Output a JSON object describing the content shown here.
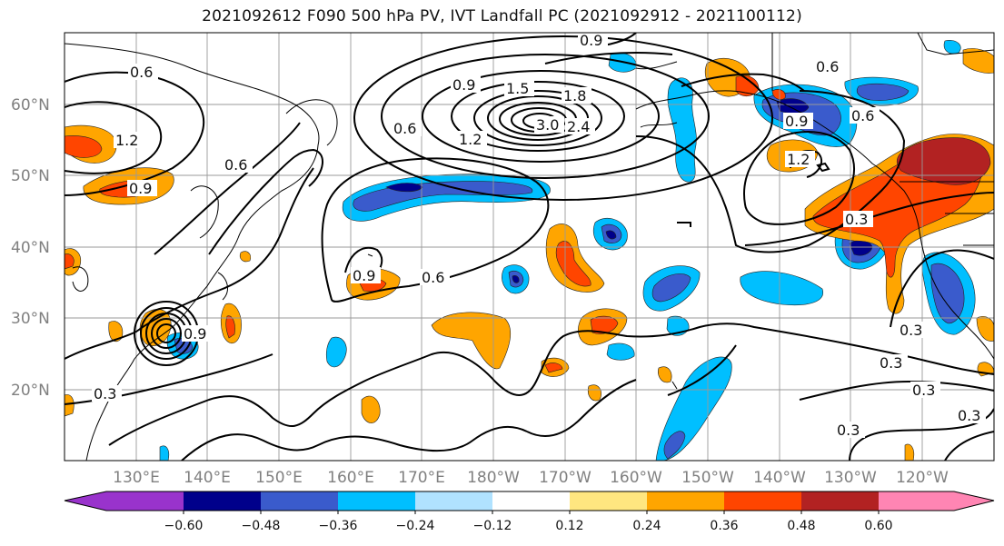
{
  "title": "2021092612 F090 500 hPa PV, IVT Landfall PC (2021092912 - 2021100112)",
  "lat_labels": [
    "60°N",
    "50°N",
    "40°N",
    "30°N",
    "20°N"
  ],
  "lon_labels": [
    "130°E",
    "140°E",
    "150°E",
    "160°E",
    "170°E",
    "180°W",
    "170°W",
    "160°W",
    "150°W",
    "140°W",
    "130°W",
    "120°W"
  ],
  "contour_labels": [
    "0.6",
    "1.2",
    "0.9",
    "0.6",
    "0.9",
    "1.5",
    "1.8",
    "3.0",
    "2.4",
    "1.2",
    "0.6",
    "0.9",
    "0.6",
    "0.9",
    "0.6",
    "0.9",
    "1.2",
    "0.3",
    "0.6",
    "0.3",
    "0.3",
    "0.3",
    "0.3",
    "0.3",
    "0.3",
    "0.9"
  ],
  "colorbar": {
    "ticks": [
      "−0.60",
      "−0.48",
      "−0.36",
      "−0.24",
      "−0.12",
      "0.12",
      "0.24",
      "0.36",
      "0.48",
      "0.60"
    ],
    "colors": [
      "#9933cc",
      "#00008b",
      "#3a5bcc",
      "#00bfff",
      "#b0e2ff",
      "#ffffff",
      "#ffe680",
      "#ffa500",
      "#ff4500",
      "#b22222",
      "#ff85b3"
    ]
  }
}
